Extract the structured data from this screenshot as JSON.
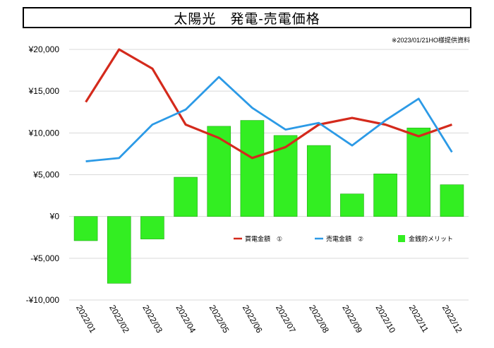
{
  "title": "太陽光　発電-売電価格",
  "note": "※2023/01/21HO様提供資料",
  "colors": {
    "buy_line": "#d42a1c",
    "sell_line": "#2c9ae6",
    "merit_bar": "#33ee22",
    "merit_bar_stroke": "#1faa12",
    "grid": "#d9d9d9"
  },
  "chart_data": {
    "type": "bar+line",
    "categories": [
      "2022/01",
      "2022/02",
      "2022/03",
      "2022/04",
      "2022/05",
      "2022/06",
      "2022/07",
      "2022/08",
      "2022/09",
      "2022/10",
      "2022/11",
      "2022/12"
    ],
    "ylim": [
      -10000,
      20000
    ],
    "yticks": [
      20000,
      15000,
      10000,
      5000,
      0,
      -5000,
      -10000
    ],
    "ytick_labels": [
      "¥20,000",
      "¥15,000",
      "¥10,000",
      "¥5,000",
      "¥0",
      "-¥5,000",
      "-¥10,000"
    ],
    "grid": true,
    "legend_position": "right, inside plot below zero line",
    "series": [
      {
        "name": "買電金額　①",
        "type": "line",
        "values": [
          13700,
          20000,
          17700,
          11000,
          9400,
          7000,
          8300,
          11000,
          11800,
          11000,
          9600,
          11000
        ]
      },
      {
        "name": "売電金額　②",
        "type": "line",
        "values": [
          6600,
          7000,
          11000,
          12800,
          16700,
          13000,
          10400,
          11200,
          8500,
          11500,
          14100,
          7700
        ]
      },
      {
        "name": "金銭的メリット",
        "type": "bar",
        "values": [
          -2900,
          -8000,
          -2700,
          4700,
          10800,
          11500,
          9700,
          8500,
          2700,
          5100,
          10600,
          3800
        ]
      }
    ]
  }
}
